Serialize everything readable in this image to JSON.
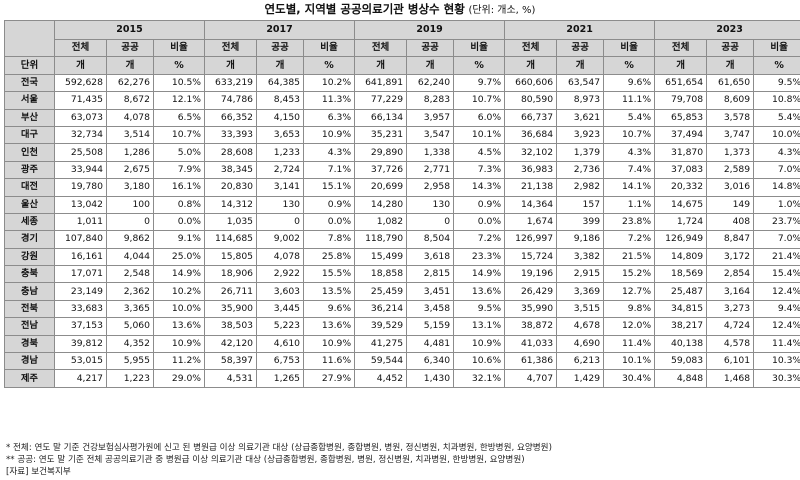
{
  "title": "연도별, 지역별 공공의료기관 병상수 현황",
  "unit_note": "(단위: 개소, %)",
  "header": {
    "years": [
      "2015",
      "2017",
      "2019",
      "2021",
      "2023"
    ],
    "sub_labels": [
      "전체",
      "공공",
      "비율"
    ],
    "unit_row_label": "단위",
    "units": [
      "개",
      "개",
      "%"
    ]
  },
  "rows": [
    {
      "region": "전국",
      "values": [
        "592,628",
        "62,276",
        "10.5%",
        "633,219",
        "64,385",
        "10.2%",
        "641,891",
        "62,240",
        "9.7%",
        "660,606",
        "63,547",
        "9.6%",
        "651,654",
        "61,650",
        "9.5%"
      ]
    },
    {
      "region": "서울",
      "values": [
        "71,435",
        "8,672",
        "12.1%",
        "74,786",
        "8,453",
        "11.3%",
        "77,229",
        "8,283",
        "10.7%",
        "80,590",
        "8,973",
        "11.1%",
        "79,708",
        "8,609",
        "10.8%"
      ]
    },
    {
      "region": "부산",
      "values": [
        "63,073",
        "4,078",
        "6.5%",
        "66,352",
        "4,150",
        "6.3%",
        "66,134",
        "3,957",
        "6.0%",
        "66,737",
        "3,621",
        "5.4%",
        "65,853",
        "3,578",
        "5.4%"
      ]
    },
    {
      "region": "대구",
      "values": [
        "32,734",
        "3,514",
        "10.7%",
        "33,393",
        "3,653",
        "10.9%",
        "35,231",
        "3,547",
        "10.1%",
        "36,684",
        "3,923",
        "10.7%",
        "37,494",
        "3,747",
        "10.0%"
      ]
    },
    {
      "region": "인천",
      "values": [
        "25,508",
        "1,286",
        "5.0%",
        "28,608",
        "1,233",
        "4.3%",
        "29,890",
        "1,338",
        "4.5%",
        "32,102",
        "1,379",
        "4.3%",
        "31,870",
        "1,373",
        "4.3%"
      ]
    },
    {
      "region": "광주",
      "values": [
        "33,944",
        "2,675",
        "7.9%",
        "38,345",
        "2,724",
        "7.1%",
        "37,726",
        "2,771",
        "7.3%",
        "36,983",
        "2,736",
        "7.4%",
        "37,083",
        "2,589",
        "7.0%"
      ]
    },
    {
      "region": "대전",
      "values": [
        "19,780",
        "3,180",
        "16.1%",
        "20,830",
        "3,141",
        "15.1%",
        "20,699",
        "2,958",
        "14.3%",
        "21,138",
        "2,982",
        "14.1%",
        "20,332",
        "3,016",
        "14.8%"
      ]
    },
    {
      "region": "울산",
      "values": [
        "13,042",
        "100",
        "0.8%",
        "14,312",
        "130",
        "0.9%",
        "14,280",
        "130",
        "0.9%",
        "14,364",
        "157",
        "1.1%",
        "14,675",
        "149",
        "1.0%"
      ]
    },
    {
      "region": "세종",
      "values": [
        "1,011",
        "0",
        "0.0%",
        "1,035",
        "0",
        "0.0%",
        "1,082",
        "0",
        "0.0%",
        "1,674",
        "399",
        "23.8%",
        "1,724",
        "408",
        "23.7%"
      ]
    },
    {
      "region": "경기",
      "values": [
        "107,840",
        "9,862",
        "9.1%",
        "114,685",
        "9,002",
        "7.8%",
        "118,790",
        "8,504",
        "7.2%",
        "126,997",
        "9,186",
        "7.2%",
        "126,949",
        "8,847",
        "7.0%"
      ]
    },
    {
      "region": "강원",
      "values": [
        "16,161",
        "4,044",
        "25.0%",
        "15,805",
        "4,078",
        "25.8%",
        "15,499",
        "3,618",
        "23.3%",
        "15,724",
        "3,382",
        "21.5%",
        "14,809",
        "3,172",
        "21.4%"
      ]
    },
    {
      "region": "충북",
      "values": [
        "17,071",
        "2,548",
        "14.9%",
        "18,906",
        "2,922",
        "15.5%",
        "18,858",
        "2,815",
        "14.9%",
        "19,196",
        "2,915",
        "15.2%",
        "18,569",
        "2,854",
        "15.4%"
      ]
    },
    {
      "region": "충남",
      "values": [
        "23,149",
        "2,362",
        "10.2%",
        "26,711",
        "3,603",
        "13.5%",
        "25,459",
        "3,451",
        "13.6%",
        "26,429",
        "3,369",
        "12.7%",
        "25,487",
        "3,164",
        "12.4%"
      ]
    },
    {
      "region": "전북",
      "values": [
        "33,683",
        "3,365",
        "10.0%",
        "35,900",
        "3,445",
        "9.6%",
        "36,214",
        "3,458",
        "9.5%",
        "35,990",
        "3,515",
        "9.8%",
        "34,815",
        "3,273",
        "9.4%"
      ]
    },
    {
      "region": "전남",
      "values": [
        "37,153",
        "5,060",
        "13.6%",
        "38,503",
        "5,223",
        "13.6%",
        "39,529",
        "5,159",
        "13.1%",
        "38,872",
        "4,678",
        "12.0%",
        "38,217",
        "4,724",
        "12.4%"
      ]
    },
    {
      "region": "경북",
      "values": [
        "39,812",
        "4,352",
        "10.9%",
        "42,120",
        "4,610",
        "10.9%",
        "41,275",
        "4,481",
        "10.9%",
        "41,033",
        "4,690",
        "11.4%",
        "40,138",
        "4,578",
        "11.4%"
      ]
    },
    {
      "region": "경남",
      "values": [
        "53,015",
        "5,955",
        "11.2%",
        "58,397",
        "6,753",
        "11.6%",
        "59,544",
        "6,340",
        "10.6%",
        "61,386",
        "6,213",
        "10.1%",
        "59,083",
        "6,101",
        "10.3%"
      ]
    },
    {
      "region": "제주",
      "values": [
        "4,217",
        "1,223",
        "29.0%",
        "4,531",
        "1,265",
        "27.9%",
        "4,452",
        "1,430",
        "32.1%",
        "4,707",
        "1,429",
        "30.4%",
        "4,848",
        "1,468",
        "30.3%"
      ]
    }
  ],
  "notes": [
    "* 전체: 연도 말 기준 건강보험심사평가원에 신고 된 병원급 이상 의료기관 대상 (상급종합병원, 종합병원, 병원, 정신병원, 치과병원, 한방병원, 요양병원)",
    "** 공공: 연도 말 기준 전체 공공의료기관 중 병원급 이상 의료기관 대상 (상급종합병원, 종합병원, 병원, 정신병원, 치과병원, 한방병원, 요양병원)",
    "[자료] 보건복지부"
  ]
}
